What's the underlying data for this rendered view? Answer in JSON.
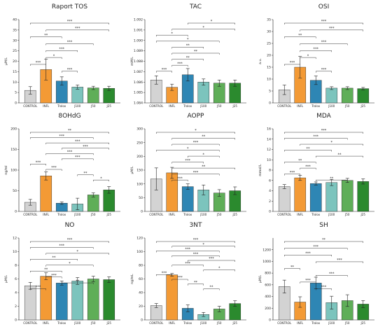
{
  "chart_data": [
    {
      "type": "bar",
      "title": "Raport TOS",
      "ylabel": "μM/L",
      "ylim": [
        0,
        40
      ],
      "yticks": [
        0,
        5,
        10,
        15,
        20,
        25,
        30,
        35,
        40
      ],
      "categories": [
        "CONTROL",
        "INFL",
        "Trolox",
        "J100",
        "J50",
        "J25"
      ],
      "values": [
        6.0,
        16.0,
        10.5,
        7.6,
        7.2,
        7.0
      ],
      "errors": [
        1.8,
        5.0,
        2.0,
        1.0,
        0.8,
        1.0
      ],
      "significance": [
        {
          "from": 0,
          "to": 5,
          "label": "***"
        },
        {
          "from": 1,
          "to": 5,
          "label": "***"
        },
        {
          "from": 0,
          "to": 2,
          "label": "**"
        },
        {
          "from": 1,
          "to": 4,
          "label": "***"
        },
        {
          "from": 1,
          "to": 3,
          "label": "***"
        },
        {
          "from": 1,
          "to": 2,
          "label": "*"
        },
        {
          "from": 0,
          "to": 1,
          "label": "***"
        },
        {
          "from": 2,
          "to": 3,
          "label": "***"
        }
      ]
    },
    {
      "type": "bar",
      "title": "TAC",
      "ylabel": "mM/L",
      "ylim": [
        1.084,
        1.092
      ],
      "yticks": [
        1.084,
        1.085,
        1.086,
        1.087,
        1.088,
        1.089,
        1.09,
        1.091,
        1.092
      ],
      "tick_decimals": 3,
      "categories": [
        "CONTROL",
        "INFL",
        "Trolox",
        "J100",
        "J50",
        "J25"
      ],
      "values": [
        1.0862,
        1.0855,
        1.0867,
        1.086,
        1.0859,
        1.0859
      ],
      "errors": [
        0.0004,
        0.0003,
        0.0006,
        0.0003,
        0.0003,
        0.0003
      ],
      "significance": [
        {
          "from": 2,
          "to": 5,
          "label": "*"
        },
        {
          "from": 1,
          "to": 5,
          "label": "*"
        },
        {
          "from": 0,
          "to": 2,
          "label": "*"
        },
        {
          "from": 0,
          "to": 4,
          "label": "*"
        },
        {
          "from": 1,
          "to": 3,
          "label": "**"
        },
        {
          "from": 1,
          "to": 4,
          "label": "**"
        },
        {
          "from": 1,
          "to": 3,
          "label": "**"
        },
        {
          "from": 1,
          "to": 2,
          "label": "***"
        },
        {
          "from": 0,
          "to": 1,
          "label": "***"
        }
      ]
    },
    {
      "type": "bar",
      "title": "OSI",
      "ylabel": "a.u.",
      "ylim": [
        0,
        35
      ],
      "yticks": [
        0,
        5,
        10,
        15,
        20,
        25,
        30,
        35
      ],
      "categories": [
        "CONTROL",
        "INFL",
        "Trolox",
        "J100",
        "J50",
        "J25"
      ],
      "values": [
        5.5,
        15.0,
        9.5,
        6.2,
        6.2,
        6.0
      ],
      "errors": [
        2.0,
        4.5,
        1.8,
        0.6,
        0.6,
        0.5
      ],
      "significance": [
        {
          "from": 0,
          "to": 5,
          "label": "***"
        },
        {
          "from": 1,
          "to": 5,
          "label": "***"
        },
        {
          "from": 0,
          "to": 2,
          "label": "**"
        },
        {
          "from": 1,
          "to": 4,
          "label": "***"
        },
        {
          "from": 1,
          "to": 3,
          "label": "***"
        },
        {
          "from": 1,
          "to": 2,
          "label": "*"
        },
        {
          "from": 0,
          "to": 1,
          "label": "***"
        },
        {
          "from": 2,
          "to": 3,
          "label": "***"
        }
      ]
    },
    {
      "type": "bar",
      "title": "8OHdG",
      "ylabel": "ng/ml",
      "ylim": [
        0,
        200
      ],
      "yticks": [
        0,
        50,
        100,
        150,
        200
      ],
      "categories": [
        "CONTROL",
        "INFL",
        "Trolox",
        "J100",
        "J50",
        "J25"
      ],
      "values": [
        22,
        86,
        20,
        18,
        40,
        52
      ],
      "errors": [
        7,
        10,
        3,
        14,
        5,
        8
      ],
      "significance": [
        {
          "from": 0,
          "to": 5,
          "label": "**"
        },
        {
          "from": 0,
          "to": 4,
          "label": "***"
        },
        {
          "from": 1,
          "to": 5,
          "label": "***"
        },
        {
          "from": 2,
          "to": 5,
          "label": "***"
        },
        {
          "from": 1,
          "to": 4,
          "label": "***"
        },
        {
          "from": 2,
          "to": 4,
          "label": "***"
        },
        {
          "from": 0,
          "to": 1,
          "label": "***"
        },
        {
          "from": 1,
          "to": 2,
          "label": "***"
        },
        {
          "from": 3,
          "to": 4,
          "label": "**"
        },
        {
          "from": 4,
          "to": 5,
          "label": "*"
        }
      ]
    },
    {
      "type": "bar",
      "title": "AOPP",
      "ylabel": "μM/L",
      "ylim": [
        0,
        300
      ],
      "yticks": [
        0,
        50,
        100,
        150,
        200,
        250,
        300
      ],
      "categories": [
        "CONTROL",
        "INFL",
        "Trolox",
        "J100",
        "J50",
        "J25"
      ],
      "values": [
        118,
        140,
        90,
        78,
        67,
        75
      ],
      "errors": [
        40,
        20,
        10,
        18,
        12,
        14
      ],
      "significance": [
        {
          "from": 0,
          "to": 5,
          "label": "*"
        },
        {
          "from": 1,
          "to": 5,
          "label": "**"
        },
        {
          "from": 1,
          "to": 4,
          "label": "***"
        },
        {
          "from": 0,
          "to": 4,
          "label": "*"
        },
        {
          "from": 2,
          "to": 4,
          "label": "*"
        },
        {
          "from": 1,
          "to": 3,
          "label": "***"
        },
        {
          "from": 1,
          "to": 5,
          "label": "**"
        },
        {
          "from": 1,
          "to": 4,
          "label": "***"
        },
        {
          "from": 1,
          "to": 2,
          "label": "***"
        }
      ]
    },
    {
      "type": "bar",
      "title": "MDA",
      "ylabel": "mmol/L",
      "ylim": [
        0,
        16
      ],
      "yticks": [
        0,
        2,
        4,
        6,
        8,
        10,
        12,
        14,
        16
      ],
      "categories": [
        "CONTROL",
        "INFL",
        "Trolox",
        "J100",
        "J50",
        "J25"
      ],
      "values": [
        4.8,
        6.5,
        5.4,
        5.6,
        6.0,
        5.8
      ],
      "errors": [
        0.4,
        0.5,
        0.3,
        0.6,
        0.4,
        0.5
      ],
      "significance": [
        {
          "from": 0,
          "to": 5,
          "label": "***"
        },
        {
          "from": 0,
          "to": 4,
          "label": "***"
        },
        {
          "from": 1,
          "to": 5,
          "label": "*"
        },
        {
          "from": 0,
          "to": 3,
          "label": "**"
        },
        {
          "from": 2,
          "to": 5,
          "label": "**"
        },
        {
          "from": 0,
          "to": 2,
          "label": "**"
        },
        {
          "from": 1,
          "to": 2,
          "label": "***"
        },
        {
          "from": 0,
          "to": 1,
          "label": "***"
        },
        {
          "from": 2,
          "to": 4,
          "label": "**"
        }
      ]
    },
    {
      "type": "bar",
      "title": "NO",
      "ylabel": "μM/L",
      "ylim": [
        0,
        12
      ],
      "yticks": [
        0,
        2,
        4,
        6,
        8,
        10,
        12
      ],
      "categories": [
        "CONTROL",
        "INFL",
        "Trolox",
        "J100",
        "J50",
        "J25"
      ],
      "values": [
        5.0,
        6.4,
        5.4,
        5.7,
        6.0,
        5.9
      ],
      "errors": [
        0.5,
        0.5,
        0.3,
        0.5,
        0.4,
        0.4
      ],
      "significance": [
        {
          "from": 0,
          "to": 5,
          "label": "***"
        },
        {
          "from": 0,
          "to": 4,
          "label": "***"
        },
        {
          "from": 1,
          "to": 5,
          "label": "*"
        },
        {
          "from": 0,
          "to": 3,
          "label": "**"
        },
        {
          "from": 1,
          "to": 4,
          "label": "*"
        },
        {
          "from": 0,
          "to": 2,
          "label": "**"
        },
        {
          "from": 1,
          "to": 2,
          "label": "***"
        },
        {
          "from": 2,
          "to": 4,
          "label": "**"
        },
        {
          "from": 0,
          "to": 1,
          "label": "***"
        }
      ]
    },
    {
      "type": "bar",
      "title": "3NT",
      "ylabel": "ng/mL",
      "ylim": [
        0,
        120
      ],
      "yticks": [
        0,
        20,
        40,
        60,
        80,
        100,
        120
      ],
      "categories": [
        "CONTROL",
        "INFL",
        "Trolox",
        "J100",
        "J50",
        "J25"
      ],
      "values": [
        21,
        66,
        17,
        8,
        16,
        24
      ],
      "errors": [
        3,
        2,
        5,
        3,
        4,
        4
      ],
      "significance": [
        {
          "from": 0,
          "to": 5,
          "label": "***"
        },
        {
          "from": 1,
          "to": 5,
          "label": "*"
        },
        {
          "from": 0,
          "to": 4,
          "label": "***"
        },
        {
          "from": 1,
          "to": 4,
          "label": "***"
        },
        {
          "from": 2,
          "to": 5,
          "label": "***"
        },
        {
          "from": 1,
          "to": 3,
          "label": "***"
        },
        {
          "from": 3,
          "to": 5,
          "label": "*"
        },
        {
          "from": 0,
          "to": 1,
          "label": "***"
        },
        {
          "from": 1,
          "to": 2,
          "label": "***"
        },
        {
          "from": 2,
          "to": 3,
          "label": "**"
        },
        {
          "from": 3,
          "to": 4,
          "label": "**"
        }
      ]
    },
    {
      "type": "bar",
      "title": "SH",
      "ylabel": "μM/L",
      "ylim": [
        0,
        1400
      ],
      "yticks": [
        0,
        200,
        400,
        600,
        800,
        1000,
        1200
      ],
      "categories": [
        "CONTROL",
        "INFL",
        "Trolox",
        "J100",
        "J50",
        "J25"
      ],
      "values": [
        570,
        305,
        630,
        295,
        330,
        270
      ],
      "errors": [
        110,
        90,
        100,
        110,
        100,
        60
      ],
      "significance": [
        {
          "from": 0,
          "to": 5,
          "label": "**"
        },
        {
          "from": 0,
          "to": 4,
          "label": "***"
        },
        {
          "from": 0,
          "to": 3,
          "label": "***"
        },
        {
          "from": 2,
          "to": 5,
          "label": "***"
        },
        {
          "from": 0,
          "to": 1,
          "label": "**"
        },
        {
          "from": 2,
          "to": 4,
          "label": "***"
        },
        {
          "from": 1,
          "to": 2,
          "label": "***"
        },
        {
          "from": 2,
          "to": 3,
          "label": "***"
        }
      ]
    }
  ],
  "colors": {
    "bars": [
      "#d3d3d3",
      "#f39a35",
      "#2e86b4",
      "#7cc4bd",
      "#5fae58",
      "#2b8a2e"
    ],
    "edge": "#222222",
    "text": "#222222"
  }
}
